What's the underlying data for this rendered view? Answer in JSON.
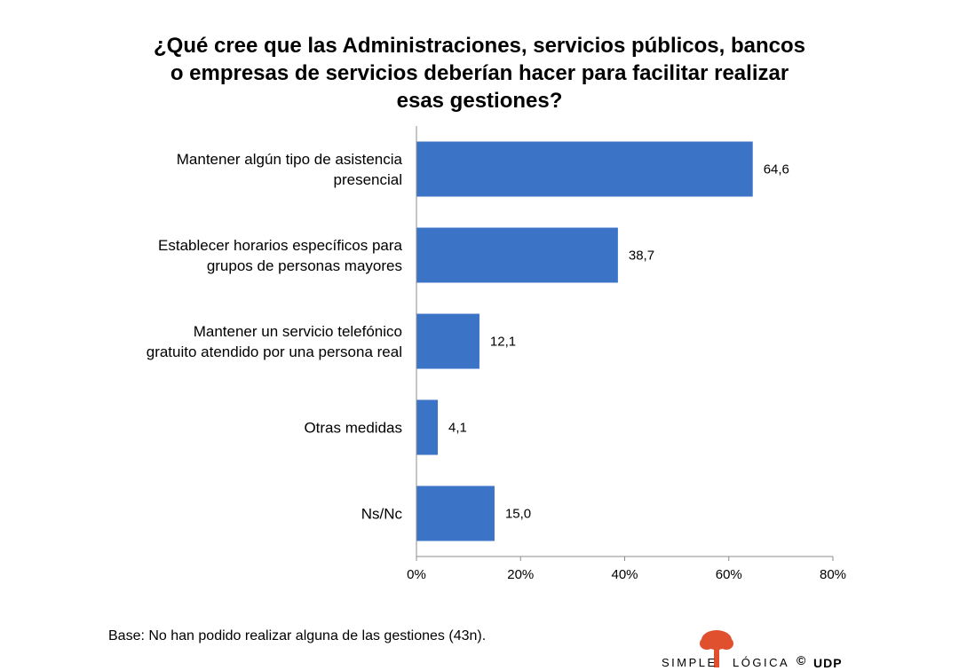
{
  "title_lines": [
    "¿Qué cree que las Administraciones,  servicios públicos, bancos",
    "o empresas de servicios deberían hacer para facilitar realizar",
    "esas gestiones?"
  ],
  "chart_data": {
    "type": "bar",
    "orientation": "horizontal",
    "categories": [
      [
        "Mantener algún tipo de asistencia",
        "presencial"
      ],
      [
        "Establecer horarios específicos para",
        "grupos de personas mayores"
      ],
      [
        "Mantener un servicio telefónico",
        "gratuito atendido por una persona real"
      ],
      [
        "Otras medidas"
      ],
      [
        "Ns/Nc"
      ]
    ],
    "values": [
      64.6,
      38.7,
      12.1,
      4.1,
      15.0
    ],
    "value_labels": [
      "64,6",
      "38,7",
      "12,1",
      "4,1",
      "15,0"
    ],
    "xlim": [
      0,
      80
    ],
    "xticks": [
      0,
      20,
      40,
      60,
      80
    ],
    "xtick_labels": [
      "0%",
      "20%",
      "40%",
      "60%",
      "80%"
    ],
    "grid": false,
    "bar_color": "#3B73C7"
  },
  "footnote": "Base: No han podido realizar alguna de las gestiones (43n).",
  "brand": {
    "word1": "SIMPLE",
    "word2": "LÓGICA",
    "copyright": "©",
    "org": "UDP",
    "logo_color": "#E0502E"
  }
}
